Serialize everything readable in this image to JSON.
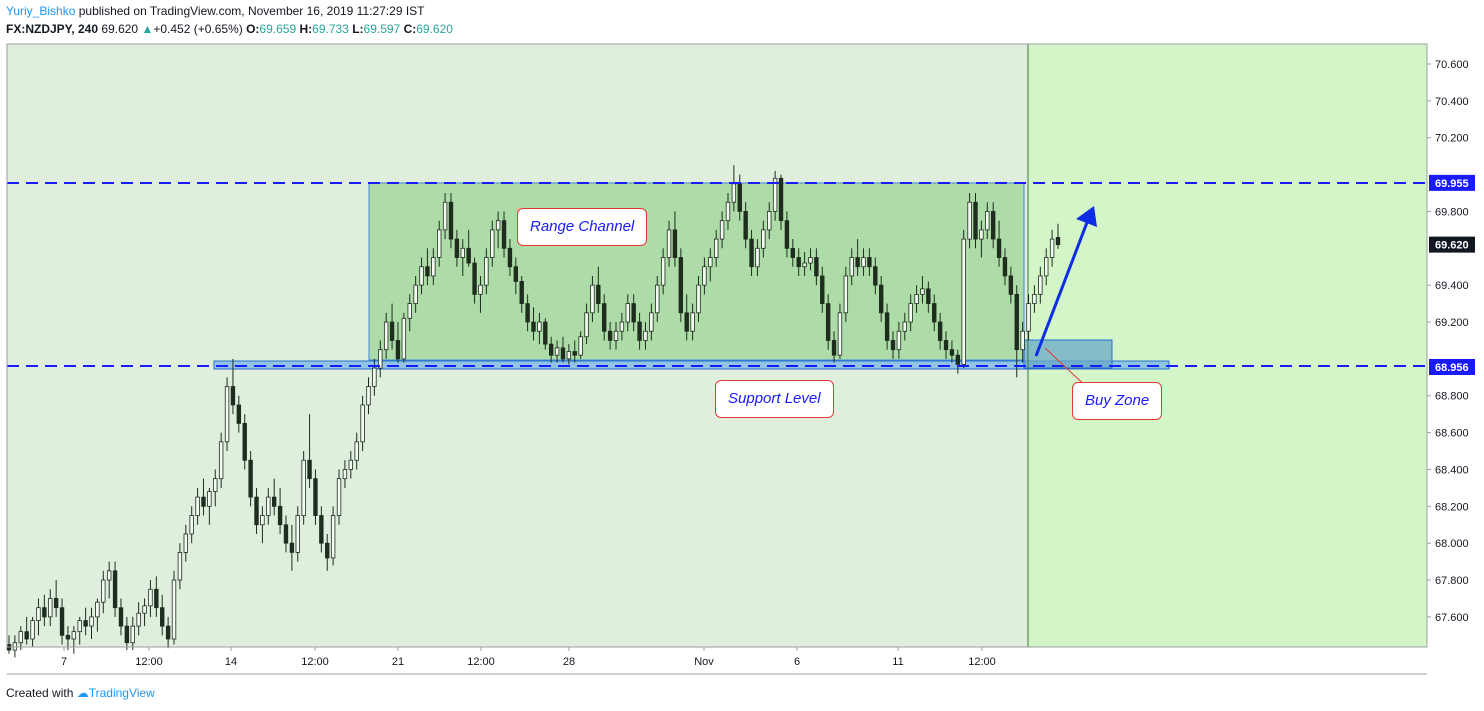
{
  "header": {
    "user": "Yuriy_Bishko",
    "published": "published on TradingView.com, November 16, 2019 11:27:29 IST",
    "symbol": "FX:NZDJPY, 240",
    "last": "69.620",
    "change": "+0.452 (+0.65%)",
    "o_label": "O:",
    "o_value": "69.659",
    "h_label": "H:",
    "h_value": "69.733",
    "l_label": "L:",
    "l_value": "69.597",
    "c_label": "C:",
    "c_value": "69.620"
  },
  "footer": {
    "created": "Created with",
    "brand": "TradingView"
  },
  "annotations": {
    "range_channel": "Range Channel",
    "support_level": "Support Level",
    "buy_zone": "Buy Zone"
  },
  "colors": {
    "background": "#dfeedd",
    "future_zone": "#d4f5c8",
    "range_box": "#a8d9a2",
    "support_band": "#6fb3e8",
    "buy_box": "#6aa8c8",
    "dashed_line": "#1a1aff",
    "arrow": "#0d2ee6",
    "candle": "#1e2d1e"
  },
  "chart_data": {
    "type": "candlestick",
    "symbol": "FX:NZDJPY",
    "interval": "240",
    "y_ticks": [
      "70.600",
      "70.400",
      "70.200",
      "69.800",
      "69.400",
      "69.200",
      "68.800",
      "68.600",
      "68.400",
      "68.200",
      "68.000",
      "67.800",
      "67.600"
    ],
    "ylim": [
      67.4,
      70.7
    ],
    "x_ticks": [
      "7",
      "12:00",
      "14",
      "12:00",
      "21",
      "12:00",
      "28",
      "Nov",
      "6",
      "11",
      "12:00"
    ],
    "resistance_level": "69.955",
    "support_level_value": "68.956",
    "last_price": "69.620",
    "candles_ohlc": [
      [
        67.45,
        67.5,
        67.4,
        67.42
      ],
      [
        67.42,
        67.5,
        67.38,
        67.46
      ],
      [
        67.46,
        67.55,
        67.42,
        67.52
      ],
      [
        67.52,
        67.6,
        67.45,
        67.48
      ],
      [
        67.48,
        67.6,
        67.44,
        67.58
      ],
      [
        67.58,
        67.7,
        67.5,
        67.65
      ],
      [
        67.65,
        67.72,
        67.55,
        67.6
      ],
      [
        67.6,
        67.75,
        67.55,
        67.7
      ],
      [
        67.7,
        67.8,
        67.6,
        67.65
      ],
      [
        67.65,
        67.7,
        67.45,
        67.5
      ],
      [
        67.5,
        67.55,
        67.42,
        67.48
      ],
      [
        67.48,
        67.55,
        67.4,
        67.52
      ],
      [
        67.52,
        67.6,
        67.45,
        67.58
      ],
      [
        67.58,
        67.65,
        67.5,
        67.55
      ],
      [
        67.55,
        67.65,
        67.48,
        67.6
      ],
      [
        67.6,
        67.7,
        67.52,
        67.68
      ],
      [
        67.68,
        67.85,
        67.62,
        67.8
      ],
      [
        67.8,
        67.9,
        67.7,
        67.85
      ],
      [
        67.85,
        67.9,
        67.6,
        67.65
      ],
      [
        67.65,
        67.7,
        67.5,
        67.55
      ],
      [
        67.55,
        67.6,
        67.42,
        67.46
      ],
      [
        67.46,
        67.6,
        67.42,
        67.55
      ],
      [
        67.55,
        67.68,
        67.5,
        67.62
      ],
      [
        67.62,
        67.7,
        67.55,
        67.66
      ],
      [
        67.66,
        67.8,
        67.6,
        67.75
      ],
      [
        67.75,
        67.82,
        67.6,
        67.65
      ],
      [
        67.65,
        67.72,
        67.5,
        67.55
      ],
      [
        67.55,
        67.6,
        67.43,
        67.48
      ],
      [
        67.48,
        67.85,
        67.45,
        67.8
      ],
      [
        67.8,
        68.0,
        67.75,
        67.95
      ],
      [
        67.95,
        68.1,
        67.9,
        68.05
      ],
      [
        68.05,
        68.2,
        68.0,
        68.15
      ],
      [
        68.15,
        68.3,
        68.1,
        68.25
      ],
      [
        68.25,
        68.35,
        68.15,
        68.2
      ],
      [
        68.2,
        68.3,
        68.1,
        68.28
      ],
      [
        68.28,
        68.4,
        68.2,
        68.35
      ],
      [
        68.35,
        68.6,
        68.3,
        68.55
      ],
      [
        68.55,
        68.9,
        68.5,
        68.85
      ],
      [
        68.85,
        69.0,
        68.7,
        68.75
      ],
      [
        68.75,
        68.8,
        68.6,
        68.65
      ],
      [
        68.65,
        68.7,
        68.4,
        68.45
      ],
      [
        68.45,
        68.5,
        68.2,
        68.25
      ],
      [
        68.25,
        68.3,
        68.05,
        68.1
      ],
      [
        68.1,
        68.2,
        68.0,
        68.15
      ],
      [
        68.15,
        68.3,
        68.1,
        68.25
      ],
      [
        68.25,
        68.35,
        68.15,
        68.2
      ],
      [
        68.2,
        68.3,
        68.05,
        68.1
      ],
      [
        68.1,
        68.15,
        67.95,
        68.0
      ],
      [
        68.0,
        68.1,
        67.85,
        67.95
      ],
      [
        67.95,
        68.2,
        67.9,
        68.15
      ],
      [
        68.15,
        68.5,
        68.1,
        68.45
      ],
      [
        68.45,
        68.7,
        68.3,
        68.35
      ],
      [
        68.35,
        68.4,
        68.1,
        68.15
      ],
      [
        68.15,
        68.2,
        67.95,
        68.0
      ],
      [
        68.0,
        68.05,
        67.85,
        67.92
      ],
      [
        67.92,
        68.2,
        67.88,
        68.15
      ],
      [
        68.15,
        68.4,
        68.1,
        68.35
      ],
      [
        68.35,
        68.45,
        68.3,
        68.4
      ],
      [
        68.4,
        68.5,
        68.35,
        68.45
      ],
      [
        68.45,
        68.6,
        68.4,
        68.55
      ],
      [
        68.55,
        68.8,
        68.5,
        68.75
      ],
      [
        68.75,
        68.9,
        68.7,
        68.85
      ],
      [
        68.85,
        69.0,
        68.8,
        68.95
      ],
      [
        68.95,
        69.1,
        68.9,
        69.05
      ],
      [
        69.05,
        69.25,
        69.0,
        69.2
      ],
      [
        69.2,
        69.3,
        69.05,
        69.1
      ],
      [
        69.1,
        69.2,
        68.98,
        69.0
      ],
      [
        69.0,
        69.25,
        68.98,
        69.22
      ],
      [
        69.22,
        69.35,
        69.15,
        69.3
      ],
      [
        69.3,
        69.45,
        69.25,
        69.4
      ],
      [
        69.4,
        69.55,
        69.35,
        69.5
      ],
      [
        69.5,
        69.6,
        69.4,
        69.45
      ],
      [
        69.45,
        69.6,
        69.4,
        69.55
      ],
      [
        69.55,
        69.75,
        69.5,
        69.7
      ],
      [
        69.7,
        69.9,
        69.65,
        69.85
      ],
      [
        69.85,
        69.9,
        69.6,
        69.65
      ],
      [
        69.65,
        69.7,
        69.5,
        69.55
      ],
      [
        69.55,
        69.65,
        69.45,
        69.6
      ],
      [
        69.6,
        69.7,
        69.5,
        69.52
      ],
      [
        69.52,
        69.55,
        69.3,
        69.35
      ],
      [
        69.35,
        69.45,
        69.25,
        69.4
      ],
      [
        69.4,
        69.6,
        69.35,
        69.55
      ],
      [
        69.55,
        69.75,
        69.5,
        69.7
      ],
      [
        69.7,
        69.8,
        69.6,
        69.75
      ],
      [
        69.75,
        69.8,
        69.55,
        69.6
      ],
      [
        69.6,
        69.65,
        69.45,
        69.5
      ],
      [
        69.5,
        69.55,
        69.35,
        69.42
      ],
      [
        69.42,
        69.45,
        69.25,
        69.3
      ],
      [
        69.3,
        69.35,
        69.15,
        69.2
      ],
      [
        69.2,
        69.28,
        69.1,
        69.15
      ],
      [
        69.15,
        69.25,
        69.08,
        69.2
      ],
      [
        69.2,
        69.22,
        69.05,
        69.08
      ],
      [
        69.08,
        69.12,
        68.98,
        69.02
      ],
      [
        69.02,
        69.1,
        68.98,
        69.06
      ],
      [
        69.06,
        69.12,
        68.98,
        69.0
      ],
      [
        69.0,
        69.08,
        68.97,
        69.04
      ],
      [
        69.04,
        69.1,
        68.98,
        69.02
      ],
      [
        69.02,
        69.15,
        69.0,
        69.12
      ],
      [
        69.12,
        69.3,
        69.08,
        69.25
      ],
      [
        69.25,
        69.45,
        69.2,
        69.4
      ],
      [
        69.4,
        69.5,
        69.25,
        69.3
      ],
      [
        69.3,
        69.35,
        69.1,
        69.15
      ],
      [
        69.15,
        69.2,
        69.05,
        69.1
      ],
      [
        69.1,
        69.2,
        69.05,
        69.15
      ],
      [
        69.15,
        69.25,
        69.1,
        69.2
      ],
      [
        69.2,
        69.35,
        69.15,
        69.3
      ],
      [
        69.3,
        69.35,
        69.15,
        69.2
      ],
      [
        69.2,
        69.25,
        69.05,
        69.1
      ],
      [
        69.1,
        69.2,
        69.05,
        69.15
      ],
      [
        69.15,
        69.3,
        69.1,
        69.25
      ],
      [
        69.25,
        69.45,
        69.2,
        69.4
      ],
      [
        69.4,
        69.6,
        69.35,
        69.55
      ],
      [
        69.55,
        69.75,
        69.5,
        69.7
      ],
      [
        69.7,
        69.8,
        69.5,
        69.55
      ],
      [
        69.55,
        69.6,
        69.2,
        69.25
      ],
      [
        69.25,
        69.35,
        69.1,
        69.15
      ],
      [
        69.15,
        69.3,
        69.1,
        69.25
      ],
      [
        69.25,
        69.45,
        69.2,
        69.4
      ],
      [
        69.4,
        69.55,
        69.35,
        69.5
      ],
      [
        69.5,
        69.6,
        69.42,
        69.55
      ],
      [
        69.55,
        69.7,
        69.5,
        69.65
      ],
      [
        69.65,
        69.8,
        69.6,
        69.75
      ],
      [
        69.75,
        69.9,
        69.7,
        69.85
      ],
      [
        69.85,
        70.05,
        69.8,
        69.95
      ],
      [
        69.95,
        70.0,
        69.75,
        69.8
      ],
      [
        69.8,
        69.85,
        69.6,
        69.65
      ],
      [
        69.65,
        69.7,
        69.45,
        69.5
      ],
      [
        69.5,
        69.65,
        69.45,
        69.6
      ],
      [
        69.6,
        69.75,
        69.55,
        69.7
      ],
      [
        69.7,
        69.85,
        69.65,
        69.8
      ],
      [
        69.8,
        70.02,
        69.75,
        69.98
      ],
      [
        69.98,
        70.0,
        69.7,
        69.75
      ],
      [
        69.75,
        69.8,
        69.55,
        69.6
      ],
      [
        69.6,
        69.65,
        69.5,
        69.55
      ],
      [
        69.55,
        69.6,
        69.45,
        69.5
      ],
      [
        69.5,
        69.58,
        69.45,
        69.52
      ],
      [
        69.52,
        69.6,
        69.48,
        69.55
      ],
      [
        69.55,
        69.6,
        69.4,
        69.45
      ],
      [
        69.45,
        69.5,
        69.25,
        69.3
      ],
      [
        69.3,
        69.35,
        69.05,
        69.1
      ],
      [
        69.1,
        69.15,
        68.98,
        69.02
      ],
      [
        69.02,
        69.3,
        69.0,
        69.25
      ],
      [
        69.25,
        69.5,
        69.2,
        69.45
      ],
      [
        69.45,
        69.6,
        69.4,
        69.55
      ],
      [
        69.55,
        69.65,
        69.45,
        69.5
      ],
      [
        69.5,
        69.6,
        69.45,
        69.55
      ],
      [
        69.55,
        69.6,
        69.45,
        69.5
      ],
      [
        69.5,
        69.55,
        69.35,
        69.4
      ],
      [
        69.4,
        69.45,
        69.2,
        69.25
      ],
      [
        69.25,
        69.3,
        69.05,
        69.1
      ],
      [
        69.1,
        69.15,
        69.0,
        69.05
      ],
      [
        69.05,
        69.2,
        69.0,
        69.15
      ],
      [
        69.15,
        69.25,
        69.1,
        69.2
      ],
      [
        69.2,
        69.35,
        69.15,
        69.3
      ],
      [
        69.3,
        69.4,
        69.25,
        69.35
      ],
      [
        69.35,
        69.45,
        69.3,
        69.38
      ],
      [
        69.38,
        69.42,
        69.25,
        69.3
      ],
      [
        69.3,
        69.35,
        69.15,
        69.2
      ],
      [
        69.2,
        69.25,
        69.05,
        69.1
      ],
      [
        69.1,
        69.15,
        69.0,
        69.05
      ],
      [
        69.05,
        69.1,
        68.98,
        69.02
      ],
      [
        69.02,
        69.05,
        68.92,
        68.97
      ],
      [
        68.97,
        69.7,
        68.95,
        69.65
      ],
      [
        69.65,
        69.9,
        69.6,
        69.85
      ],
      [
        69.85,
        69.9,
        69.6,
        69.65
      ],
      [
        69.65,
        69.75,
        69.55,
        69.7
      ],
      [
        69.7,
        69.85,
        69.65,
        69.8
      ],
      [
        69.8,
        69.85,
        69.6,
        69.65
      ],
      [
        69.65,
        69.75,
        69.5,
        69.55
      ],
      [
        69.55,
        69.6,
        69.4,
        69.45
      ],
      [
        69.45,
        69.5,
        69.3,
        69.35
      ],
      [
        69.35,
        69.4,
        68.9,
        69.05
      ],
      [
        69.05,
        69.2,
        68.98,
        69.15
      ],
      [
        69.15,
        69.35,
        69.1,
        69.3
      ],
      [
        69.3,
        69.4,
        69.25,
        69.35
      ],
      [
        69.35,
        69.5,
        69.3,
        69.45
      ],
      [
        69.45,
        69.6,
        69.4,
        69.55
      ],
      [
        69.55,
        69.7,
        69.5,
        69.65
      ],
      [
        69.659,
        69.733,
        69.597,
        69.62
      ]
    ]
  }
}
